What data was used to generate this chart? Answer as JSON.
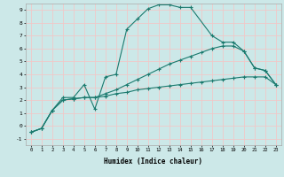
{
  "xlabel": "Humidex (Indice chaleur)",
  "ylabel": "",
  "bg_color": "#cce8e8",
  "grid_color": "#f0c8c8",
  "line_color": "#1a7a6e",
  "xlim": [
    -0.5,
    23.5
  ],
  "ylim": [
    -1.5,
    9.5
  ],
  "xticks": [
    0,
    1,
    2,
    3,
    4,
    5,
    6,
    7,
    8,
    9,
    10,
    11,
    12,
    13,
    14,
    15,
    16,
    17,
    18,
    19,
    20,
    21,
    22,
    23
  ],
  "yticks": [
    -1,
    0,
    1,
    2,
    3,
    4,
    5,
    6,
    7,
    8,
    9
  ],
  "series": [
    {
      "x": [
        0,
        1,
        2,
        3,
        4,
        5,
        6,
        7,
        8,
        9,
        10,
        11,
        12,
        13,
        14,
        15,
        17,
        18,
        19,
        20,
        21,
        22,
        23
      ],
      "y": [
        -0.5,
        -0.2,
        1.2,
        2.2,
        2.2,
        3.2,
        1.3,
        3.8,
        4.0,
        7.5,
        8.3,
        9.1,
        9.4,
        9.4,
        9.2,
        9.2,
        7.0,
        6.5,
        6.5,
        5.8,
        4.5,
        4.3,
        3.2
      ]
    },
    {
      "x": [
        0,
        1,
        2,
        3,
        4,
        5,
        6,
        7,
        8,
        9,
        10,
        11,
        12,
        13,
        14,
        15,
        16,
        17,
        18,
        19,
        20,
        21,
        22,
        23
      ],
      "y": [
        -0.5,
        -0.2,
        1.2,
        2.0,
        2.1,
        2.2,
        2.2,
        2.5,
        2.8,
        3.2,
        3.6,
        4.0,
        4.4,
        4.8,
        5.1,
        5.4,
        5.7,
        6.0,
        6.2,
        6.2,
        5.8,
        4.5,
        4.3,
        3.2
      ]
    },
    {
      "x": [
        0,
        1,
        2,
        3,
        4,
        5,
        6,
        7,
        8,
        9,
        10,
        11,
        12,
        13,
        14,
        15,
        16,
        17,
        18,
        19,
        20,
        21,
        22,
        23
      ],
      "y": [
        -0.5,
        -0.2,
        1.2,
        2.0,
        2.1,
        2.2,
        2.2,
        2.3,
        2.5,
        2.6,
        2.8,
        2.9,
        3.0,
        3.1,
        3.2,
        3.3,
        3.4,
        3.5,
        3.6,
        3.7,
        3.8,
        3.8,
        3.8,
        3.2
      ]
    }
  ]
}
